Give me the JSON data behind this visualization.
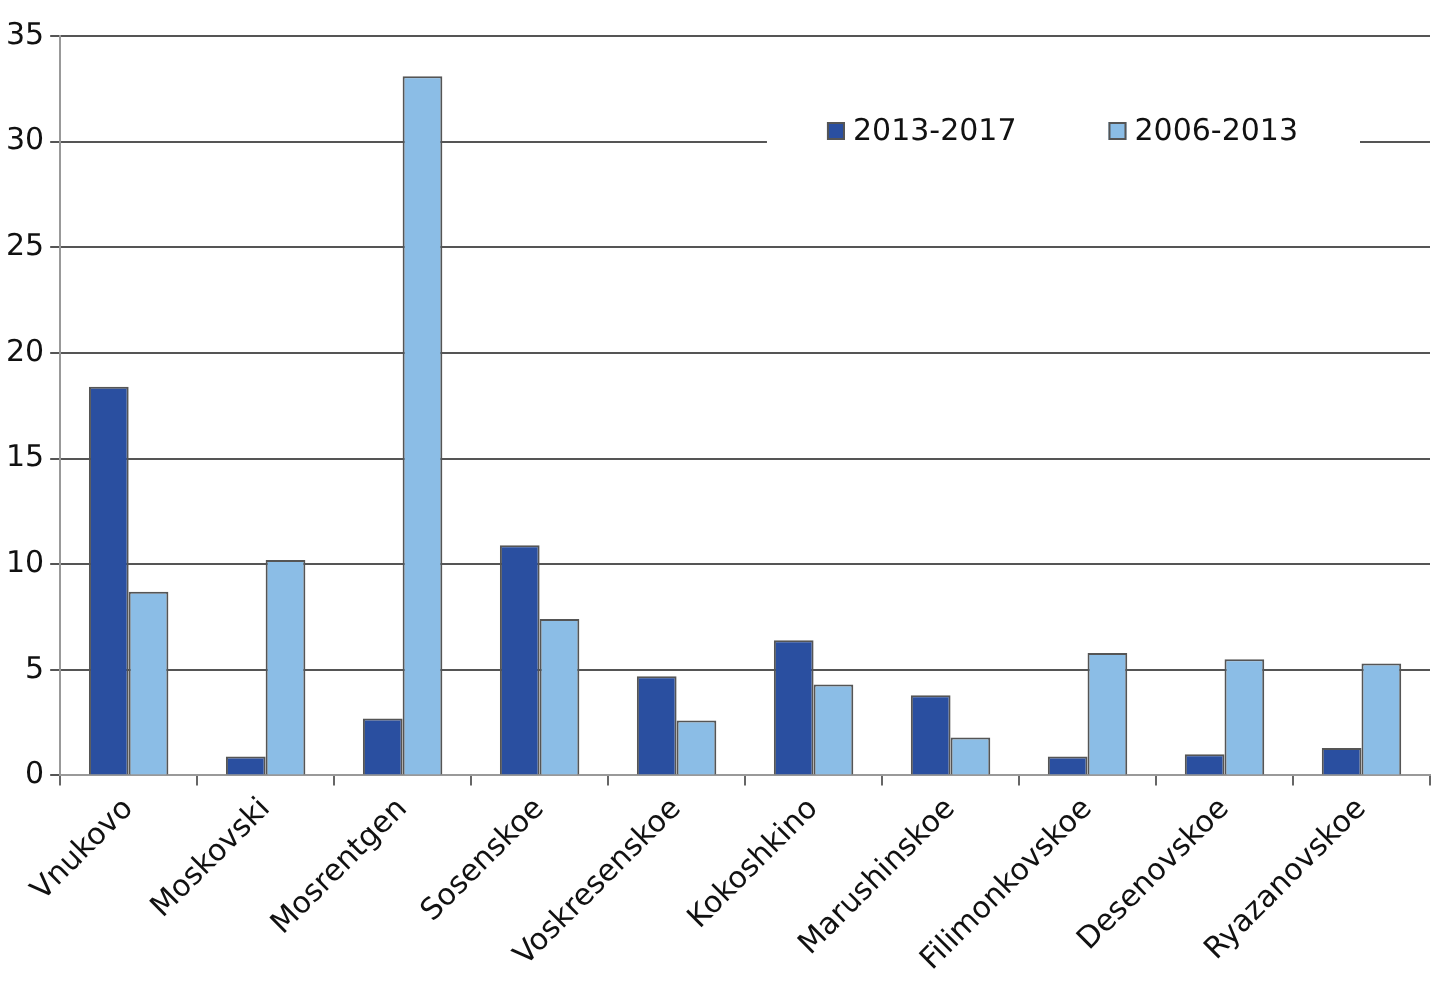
{
  "chart_data": {
    "type": "bar",
    "categories": [
      "Vnukovo",
      "Moskovski",
      "Mosrentgen",
      "Sosenskoe",
      "Voskresenskoe",
      "Kokoshkino",
      "Marushinskoe",
      "Filimonkovskoe",
      "Desenovskoe",
      "Ryazanovskoe"
    ],
    "series": [
      {
        "name": "2013-2017",
        "color": "#2a4fa0",
        "values": [
          18.4,
          0.9,
          2.7,
          10.9,
          4.7,
          6.4,
          3.8,
          0.9,
          1.0,
          1.3
        ]
      },
      {
        "name": "2006-2013",
        "color": "#8bbde6",
        "values": [
          8.7,
          10.2,
          33.1,
          7.4,
          2.6,
          4.3,
          1.8,
          5.8,
          5.5,
          5.3
        ]
      }
    ],
    "ylim": [
      0,
      35
    ],
    "yticks": [
      0,
      5,
      10,
      15,
      20,
      25,
      30,
      35
    ],
    "grid": "y",
    "legend": "top right"
  }
}
